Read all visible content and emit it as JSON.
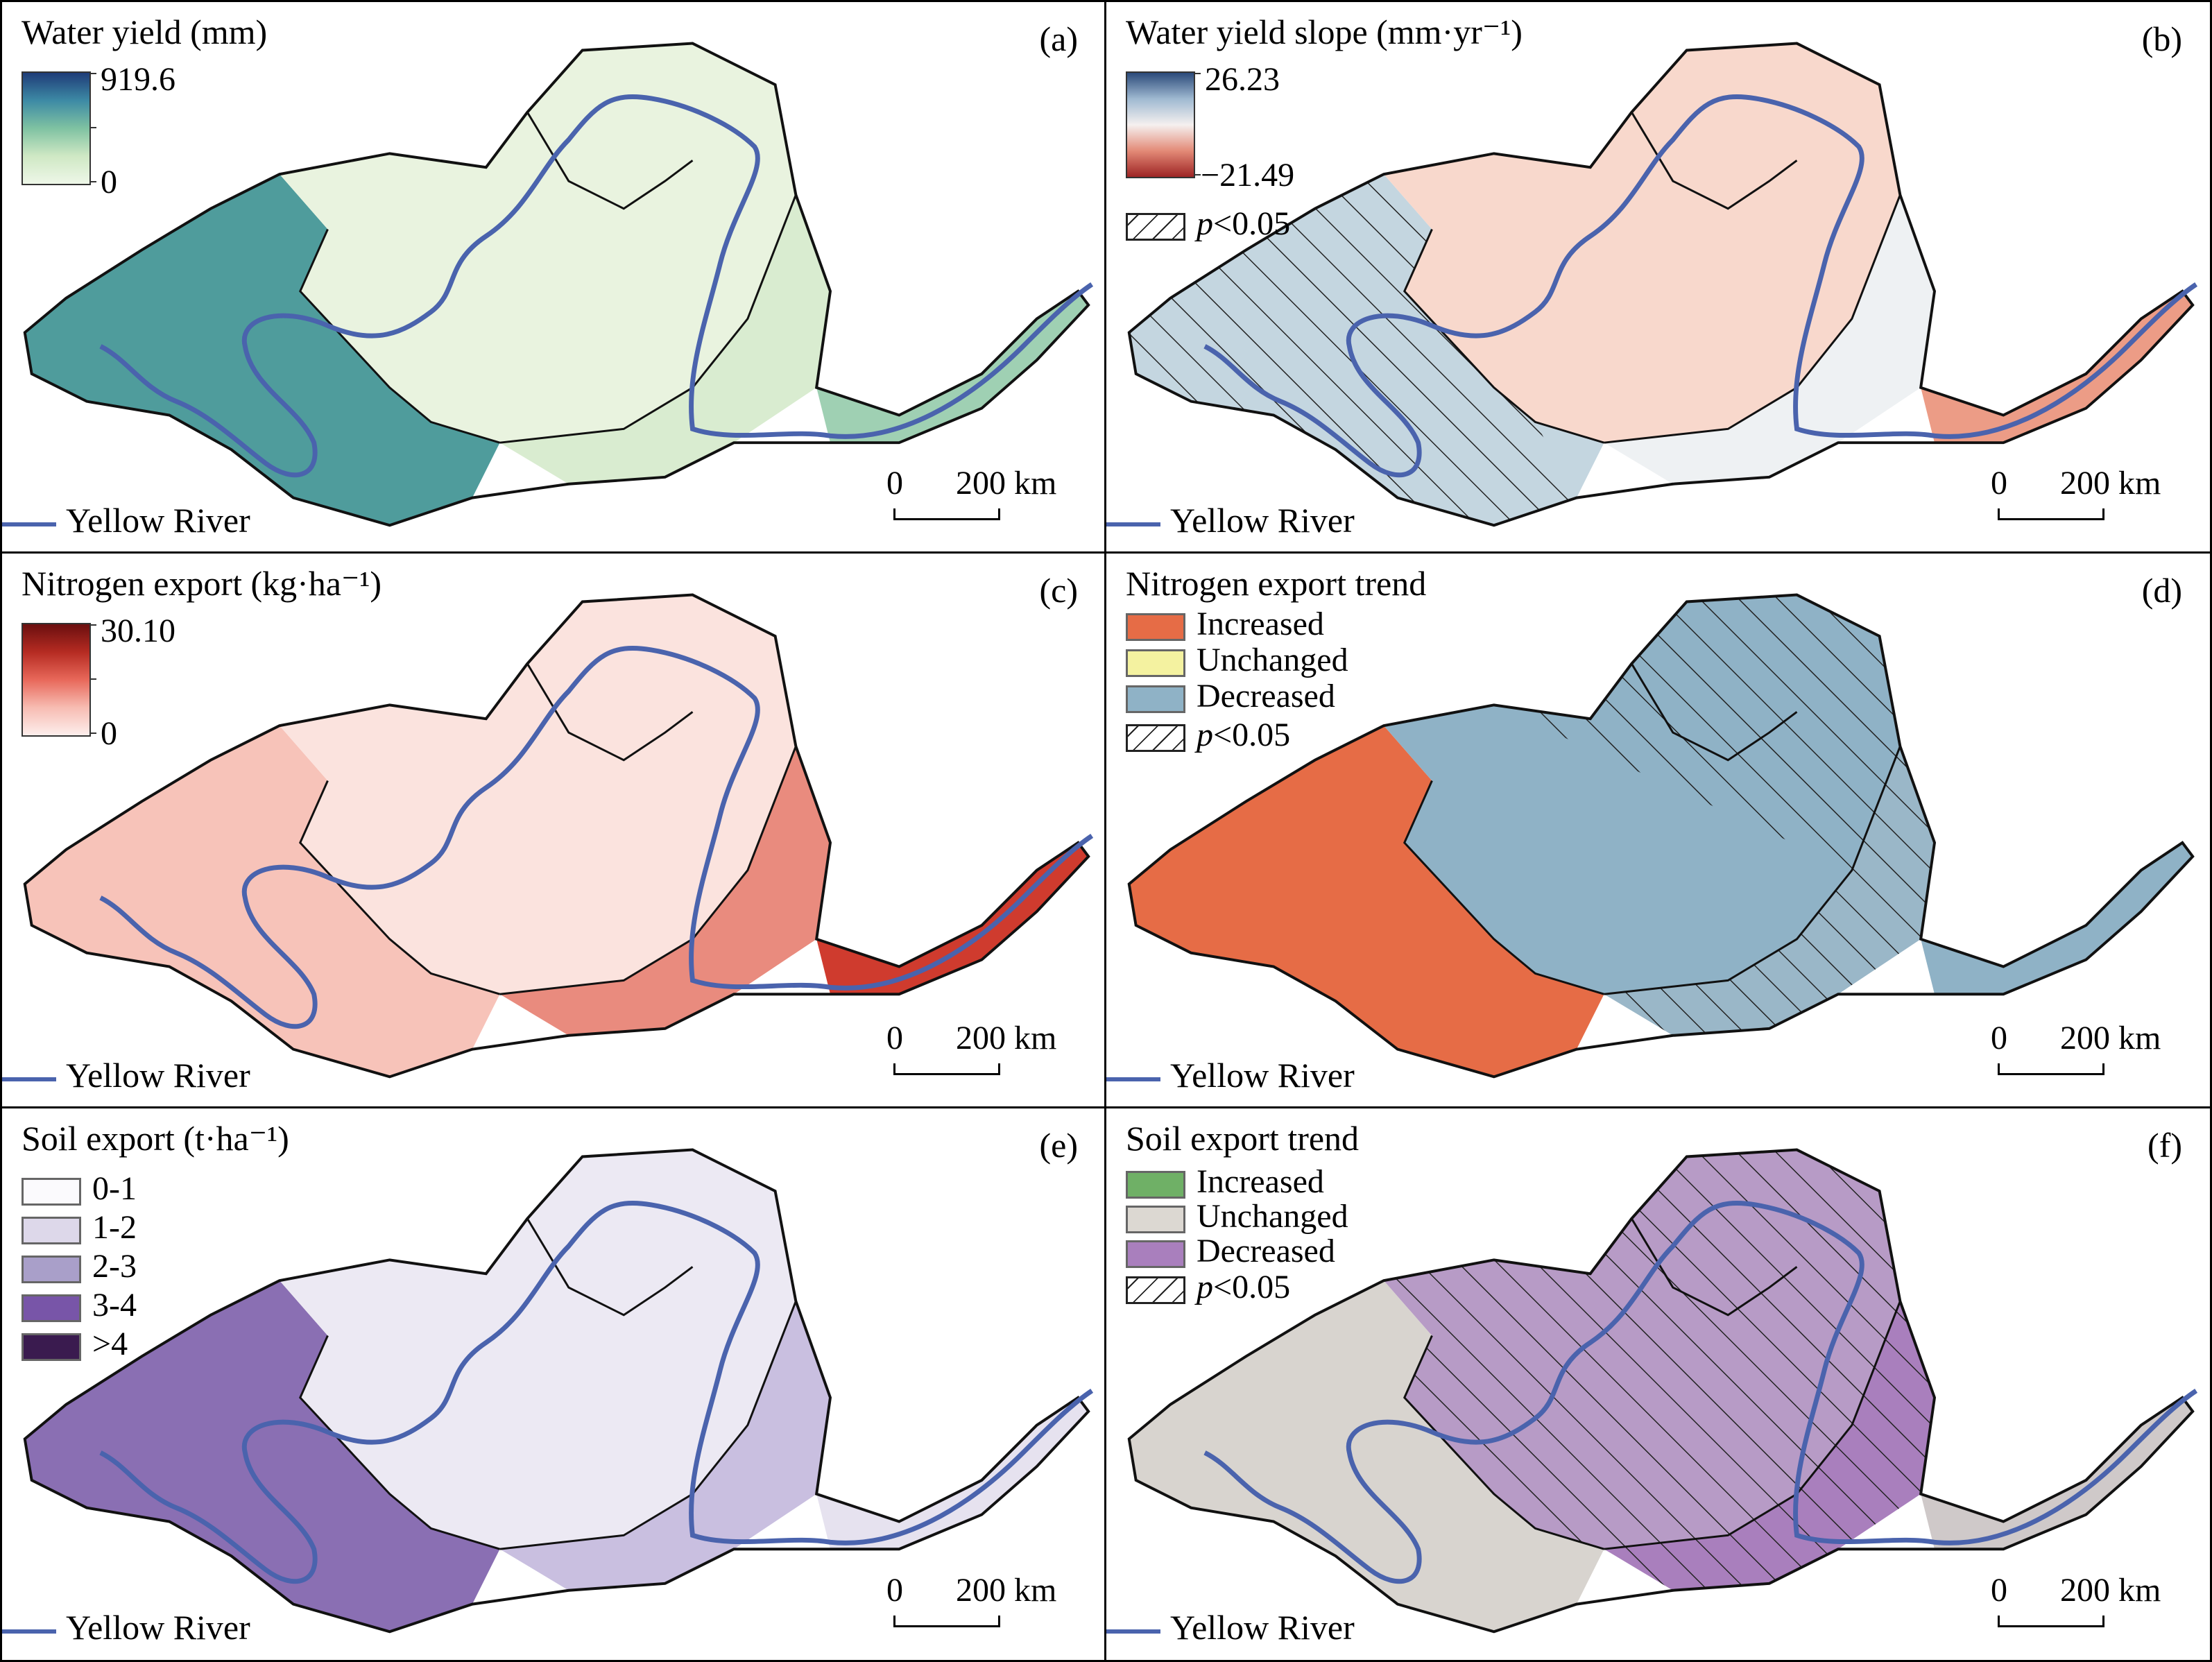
{
  "figure": {
    "colors": {
      "river": "#4a63ad",
      "boundary": "#111111",
      "hatch": "#222222"
    },
    "panels": [
      {
        "id": "a",
        "tag": "(a)",
        "title": "Water yield (mm)",
        "legend_type": "gradient",
        "gradient": {
          "max_label": "919.6",
          "min_label": "0",
          "colors": [
            "#1f3c78",
            "#3d8aa5",
            "#7fc2a2",
            "#cfe8c4",
            "#eef7e8"
          ]
        },
        "scale": {
          "zero": "0",
          "distance": "200 km"
        },
        "river_label": "Yellow River",
        "fill_colors": {
          "west": "#4f9c9c",
          "central": "#e9f3df",
          "east": "#d9ecd0",
          "tail": "#9fd0b3"
        }
      },
      {
        "id": "b",
        "tag": "(b)",
        "title": "Water yield slope (mm·yr⁻¹)",
        "legend_type": "gradient",
        "gradient": {
          "max_label": "26.23",
          "min_label": "−21.49",
          "colors": [
            "#2b4a7a",
            "#9fb9d1",
            "#f5f0ef",
            "#e38a77",
            "#9e2424"
          ]
        },
        "hatch_label_prefix": "p",
        "hatch_label_rest": "<0.05",
        "scale": {
          "zero": "0",
          "distance": "200 km"
        },
        "river_label": "Yellow River",
        "fill_colors": {
          "west": "#c4d6e0",
          "central": "#f8d8cc",
          "east": "#eef1f3",
          "tail": "#ec9c86"
        }
      },
      {
        "id": "c",
        "tag": "(c)",
        "title": "Nitrogen export (kg·ha⁻¹)",
        "legend_type": "gradient",
        "gradient": {
          "max_label": "30.10",
          "min_label": "0",
          "colors": [
            "#6b0f0f",
            "#b52b22",
            "#e8685a",
            "#f7bcb2",
            "#fdeeec"
          ]
        },
        "scale": {
          "zero": "0",
          "distance": "200 km"
        },
        "river_label": "Yellow River",
        "fill_colors": {
          "west": "#f7c3b9",
          "central": "#fbe3de",
          "east": "#e98b7e",
          "tail": "#cf3b2e"
        }
      },
      {
        "id": "d",
        "tag": "(d)",
        "title": "Nitrogen export trend",
        "legend_type": "categories",
        "categories": [
          {
            "label": "Increased",
            "color": "#e66c46"
          },
          {
            "label": "Unchanged",
            "color": "#f4f2a0"
          },
          {
            "label": "Decreased",
            "color": "#8fb2c6"
          }
        ],
        "hatch_label_prefix": "p",
        "hatch_label_rest": "<0.05",
        "scale": {
          "zero": "0",
          "distance": "200 km"
        },
        "river_label": "Yellow River",
        "fill_colors": {
          "west": "#e66c46",
          "central": "#8fb2c6",
          "east": "#9ab7c8",
          "tail": "#8fb2c6"
        }
      },
      {
        "id": "e",
        "tag": "(e)",
        "title": "Soil export (t·ha⁻¹)",
        "legend_type": "categories",
        "categories": [
          {
            "label": "0-1",
            "color": "#fbfafd"
          },
          {
            "label": "1-2",
            "color": "#ddd8ea"
          },
          {
            "label": "2-3",
            "color": "#a99fc9"
          },
          {
            "label": "3-4",
            "color": "#7855a8"
          },
          {
            "label": ">4",
            "color": "#3a1b4f"
          }
        ],
        "scale": {
          "zero": "0",
          "distance": "200 km"
        },
        "river_label": "Yellow River",
        "fill_colors": {
          "west": "#8a6fb3",
          "central": "#ece9f3",
          "east": "#c9bfe0",
          "tail": "#e6e2ef"
        }
      },
      {
        "id": "f",
        "tag": "(f)",
        "title": "Soil export trend",
        "legend_type": "categories",
        "categories": [
          {
            "label": "Increased",
            "color": "#6fb066"
          },
          {
            "label": "Unchanged",
            "color": "#dcd8d2"
          },
          {
            "label": "Decreased",
            "color": "#a97fbd"
          }
        ],
        "hatch_label_prefix": "p",
        "hatch_label_rest": "<0.05",
        "scale": {
          "zero": "0",
          "distance": "200 km"
        },
        "river_label": "Yellow River",
        "fill_colors": {
          "west": "#d8d4cf",
          "central": "#b79bc6",
          "east": "#a97fbd",
          "tail": "#cfc9c9"
        }
      }
    ]
  }
}
